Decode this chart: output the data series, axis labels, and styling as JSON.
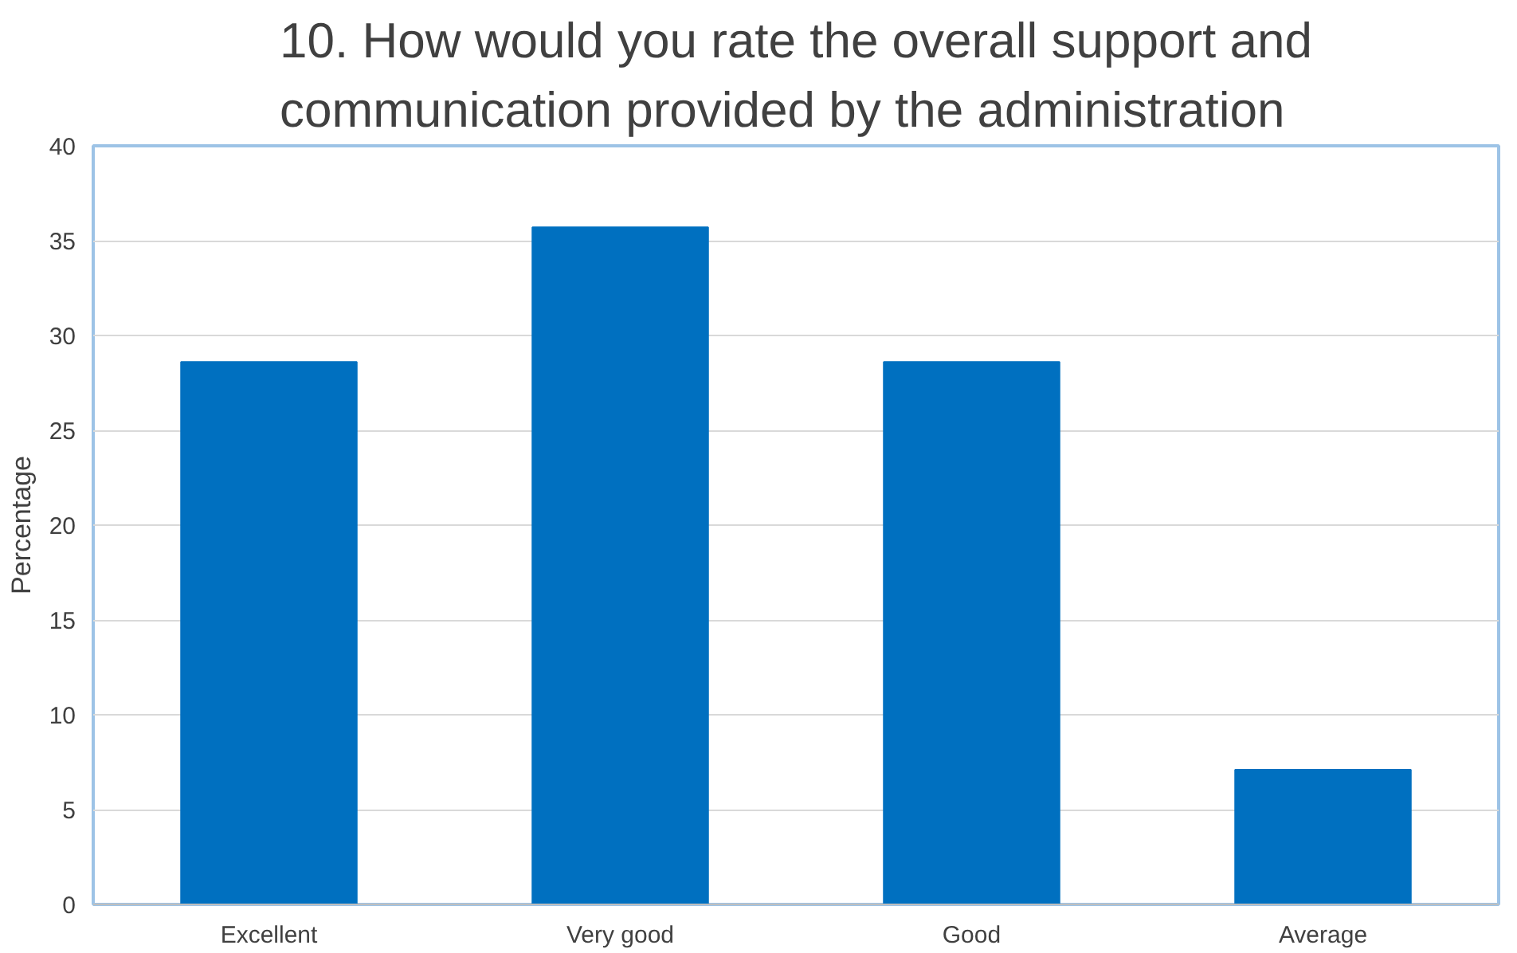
{
  "chart_data": {
    "type": "bar",
    "title": "10. How would you rate the overall support and communication provided by the administration",
    "ylabel": "Percentage",
    "categories": [
      "Excellent",
      "Very good",
      "Good",
      "Average"
    ],
    "values": [
      28.6,
      35.7,
      28.6,
      7.1
    ],
    "color": "#0070c0",
    "ylim": [
      0,
      40
    ],
    "yticks": [
      0,
      5,
      10,
      15,
      20,
      25,
      30,
      35,
      40
    ],
    "grid": "y"
  }
}
